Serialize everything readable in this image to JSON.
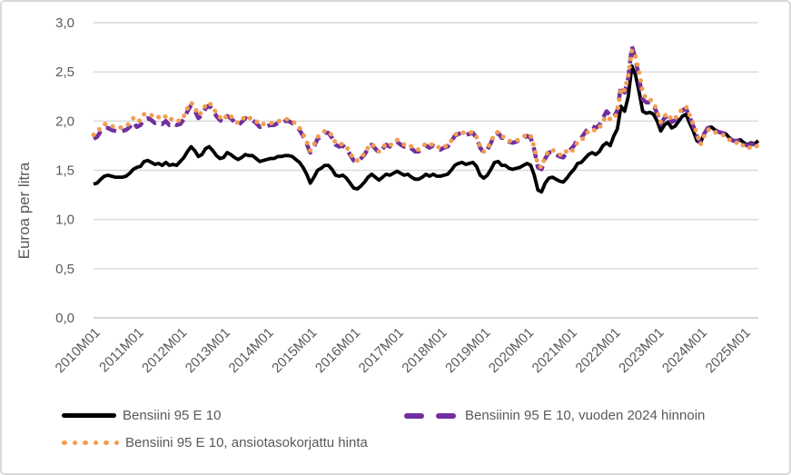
{
  "chart_data": {
    "type": "line",
    "title": "",
    "xlabel": "",
    "ylabel": "Euroa per litra",
    "ylim": [
      0.0,
      3.0
    ],
    "grid": true,
    "legend_position": "bottom",
    "y_tick_labels": [
      "0,0",
      "0,5",
      "1,0",
      "1,5",
      "2,0",
      "2,5",
      "3,0"
    ],
    "x_tick_labels": [
      "2010M01",
      "2011M01",
      "2012M01",
      "2013M01",
      "2014M01",
      "2015M01",
      "2016M01",
      "2017M01",
      "2018M01",
      "2019M01",
      "2020M01",
      "2021M01",
      "2022M01",
      "2023M01",
      "2024M01",
      "2025M01"
    ],
    "x_start": "2010M01",
    "x_end": "2025M05",
    "x_frequency": "monthly",
    "series": [
      {
        "name": "Bensiini 95 E 10",
        "color": "#000000",
        "style": "solid",
        "values": [
          1.36,
          1.37,
          1.41,
          1.44,
          1.45,
          1.44,
          1.43,
          1.43,
          1.43,
          1.44,
          1.47,
          1.51,
          1.53,
          1.54,
          1.59,
          1.6,
          1.58,
          1.56,
          1.57,
          1.55,
          1.58,
          1.55,
          1.56,
          1.55,
          1.59,
          1.63,
          1.69,
          1.74,
          1.7,
          1.64,
          1.66,
          1.72,
          1.74,
          1.7,
          1.65,
          1.62,
          1.63,
          1.68,
          1.66,
          1.63,
          1.61,
          1.63,
          1.66,
          1.65,
          1.65,
          1.62,
          1.59,
          1.6,
          1.61,
          1.62,
          1.62,
          1.64,
          1.64,
          1.65,
          1.65,
          1.64,
          1.61,
          1.58,
          1.53,
          1.46,
          1.37,
          1.43,
          1.5,
          1.52,
          1.55,
          1.55,
          1.51,
          1.45,
          1.44,
          1.45,
          1.42,
          1.37,
          1.32,
          1.31,
          1.34,
          1.38,
          1.43,
          1.46,
          1.43,
          1.4,
          1.43,
          1.46,
          1.45,
          1.47,
          1.49,
          1.47,
          1.45,
          1.46,
          1.43,
          1.41,
          1.41,
          1.43,
          1.46,
          1.44,
          1.46,
          1.44,
          1.44,
          1.45,
          1.46,
          1.5,
          1.55,
          1.57,
          1.58,
          1.56,
          1.57,
          1.58,
          1.54,
          1.45,
          1.42,
          1.45,
          1.51,
          1.58,
          1.59,
          1.55,
          1.55,
          1.52,
          1.51,
          1.52,
          1.53,
          1.55,
          1.57,
          1.55,
          1.45,
          1.3,
          1.28,
          1.37,
          1.42,
          1.43,
          1.41,
          1.39,
          1.38,
          1.42,
          1.47,
          1.51,
          1.57,
          1.58,
          1.62,
          1.66,
          1.68,
          1.66,
          1.69,
          1.75,
          1.78,
          1.75,
          1.85,
          1.92,
          2.15,
          2.1,
          2.25,
          2.56,
          2.47,
          2.3,
          2.1,
          2.08,
          2.09,
          2.07,
          2.0,
          1.9,
          1.96,
          1.99,
          1.93,
          1.95,
          2.0,
          2.05,
          2.07,
          1.98,
          1.9,
          1.8,
          1.78,
          1.87,
          1.93,
          1.94,
          1.91,
          1.89,
          1.88,
          1.87,
          1.83,
          1.8,
          1.8,
          1.81,
          1.78,
          1.76,
          1.78,
          1.77,
          1.8
        ]
      },
      {
        "name": "Bensiinin 95 E 10, vuoden 2024 hinnoin",
        "color": "#7030A0",
        "style": "dashed",
        "values": [
          1.82,
          1.84,
          1.9,
          1.93,
          1.93,
          1.91,
          1.9,
          1.89,
          1.9,
          1.91,
          1.94,
          1.99,
          1.94,
          1.96,
          2.02,
          2.03,
          2.01,
          1.98,
          1.99,
          1.97,
          2.0,
          1.96,
          1.98,
          1.96,
          1.97,
          2.02,
          2.1,
          2.16,
          2.11,
          2.03,
          2.06,
          2.13,
          2.16,
          2.11,
          2.05,
          2.01,
          1.99,
          2.05,
          2.03,
          1.99,
          1.96,
          1.99,
          2.03,
          2.01,
          2.01,
          1.98,
          1.94,
          1.95,
          1.95,
          1.96,
          1.96,
          1.98,
          1.98,
          2.0,
          2.0,
          1.98,
          1.95,
          1.91,
          1.85,
          1.77,
          1.68,
          1.74,
          1.82,
          1.84,
          1.88,
          1.88,
          1.83,
          1.76,
          1.74,
          1.75,
          1.72,
          1.66,
          1.6,
          1.59,
          1.62,
          1.66,
          1.72,
          1.76,
          1.72,
          1.68,
          1.72,
          1.76,
          1.74,
          1.77,
          1.79,
          1.76,
          1.74,
          1.75,
          1.72,
          1.69,
          1.69,
          1.72,
          1.75,
          1.73,
          1.75,
          1.73,
          1.71,
          1.73,
          1.74,
          1.79,
          1.85,
          1.87,
          1.88,
          1.86,
          1.87,
          1.88,
          1.83,
          1.73,
          1.68,
          1.71,
          1.78,
          1.86,
          1.88,
          1.83,
          1.83,
          1.79,
          1.78,
          1.79,
          1.81,
          1.83,
          1.85,
          1.83,
          1.71,
          1.53,
          1.51,
          1.62,
          1.68,
          1.69,
          1.66,
          1.64,
          1.63,
          1.68,
          1.71,
          1.75,
          1.82,
          1.83,
          1.88,
          1.93,
          1.95,
          1.93,
          1.96,
          2.03,
          2.1,
          2.06,
          2.04,
          2.11,
          2.36,
          2.29,
          2.44,
          2.76,
          2.64,
          2.44,
          2.22,
          2.19,
          2.19,
          2.16,
          2.08,
          1.97,
          2.03,
          2.06,
          1.99,
          2.01,
          2.06,
          2.11,
          2.13,
          2.04,
          1.95,
          1.85,
          1.78,
          1.87,
          1.93,
          1.94,
          1.91,
          1.89,
          1.88,
          1.87,
          1.83,
          1.8,
          1.8,
          1.81,
          1.77,
          1.75,
          1.77,
          1.76,
          1.79
        ]
      },
      {
        "name": "Bensiini 95 E 10, ansiotasokorjattu hinta",
        "color": "#F29D52",
        "style": "dotted",
        "values": [
          1.86,
          1.88,
          1.94,
          1.97,
          1.97,
          1.95,
          1.94,
          1.93,
          1.94,
          1.95,
          1.98,
          2.03,
          1.99,
          2.01,
          2.07,
          2.08,
          2.06,
          2.03,
          2.04,
          2.02,
          2.05,
          2.01,
          2.03,
          2.01,
          2.0,
          2.05,
          2.13,
          2.19,
          2.14,
          2.06,
          2.09,
          2.16,
          2.19,
          2.14,
          2.08,
          2.04,
          2.01,
          2.07,
          2.05,
          2.01,
          1.98,
          2.01,
          2.05,
          2.03,
          2.03,
          2.0,
          1.96,
          1.97,
          1.97,
          1.98,
          1.98,
          2.0,
          2.0,
          2.02,
          2.02,
          2.0,
          1.97,
          1.93,
          1.87,
          1.79,
          1.7,
          1.76,
          1.84,
          1.86,
          1.9,
          1.9,
          1.85,
          1.78,
          1.76,
          1.77,
          1.74,
          1.68,
          1.61,
          1.6,
          1.63,
          1.67,
          1.73,
          1.77,
          1.73,
          1.69,
          1.73,
          1.77,
          1.75,
          1.78,
          1.81,
          1.78,
          1.76,
          1.77,
          1.74,
          1.71,
          1.71,
          1.74,
          1.77,
          1.75,
          1.77,
          1.75,
          1.72,
          1.74,
          1.75,
          1.8,
          1.86,
          1.88,
          1.89,
          1.87,
          1.88,
          1.89,
          1.84,
          1.74,
          1.69,
          1.72,
          1.79,
          1.87,
          1.89,
          1.84,
          1.84,
          1.8,
          1.79,
          1.8,
          1.82,
          1.84,
          1.87,
          1.85,
          1.73,
          1.55,
          1.53,
          1.64,
          1.7,
          1.71,
          1.68,
          1.66,
          1.65,
          1.7,
          1.68,
          1.72,
          1.79,
          1.8,
          1.85,
          1.9,
          1.92,
          1.9,
          1.93,
          2.0,
          2.05,
          2.02,
          2.02,
          2.09,
          2.34,
          2.31,
          2.46,
          2.72,
          2.66,
          2.5,
          2.3,
          2.22,
          2.22,
          2.19,
          2.1,
          1.99,
          2.05,
          2.08,
          2.01,
          2.03,
          2.08,
          2.13,
          2.15,
          2.06,
          1.97,
          1.87,
          1.76,
          1.85,
          1.91,
          1.92,
          1.89,
          1.87,
          1.86,
          1.85,
          1.81,
          1.78,
          1.78,
          1.79,
          1.74,
          1.72,
          1.74,
          1.73,
          1.76
        ]
      }
    ],
    "colors": {
      "grid": "#D9D9D9",
      "baseline": "#C6C6C6",
      "axis_text": "#595959",
      "frame_border": "#D9D9D9"
    }
  }
}
